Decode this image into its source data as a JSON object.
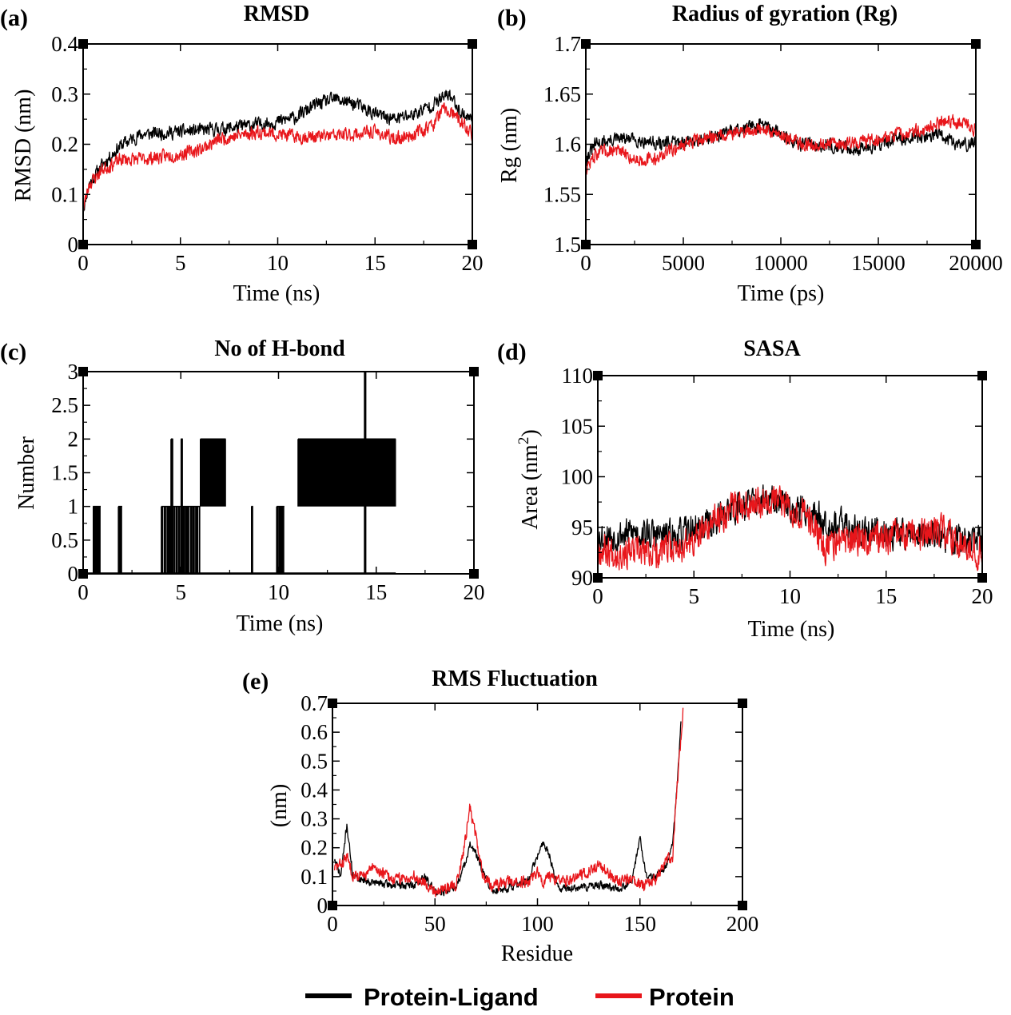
{
  "colors": {
    "protein_ligand": "#000000",
    "protein": "#e8161b"
  },
  "legend": {
    "items": [
      {
        "label": "Protein-Ligand",
        "color": "#000000"
      },
      {
        "label": "Protein",
        "color": "#e8161b"
      }
    ]
  },
  "chart_data": [
    {
      "id": "a",
      "panel_label": "(a)",
      "type": "line",
      "title": "RMSD",
      "xlabel": "Time (ns)",
      "ylabel": "RMSD (nm)",
      "xlim": [
        0,
        20
      ],
      "ylim": [
        0,
        0.4
      ],
      "xticks": [
        0,
        5,
        10,
        15,
        20
      ],
      "xtick_labels": [
        "0",
        "5",
        "10",
        "15",
        "20"
      ],
      "yticks": [
        0,
        0.1,
        0.2,
        0.3,
        0.4
      ],
      "ytick_labels": [
        "0",
        "0.1",
        "0.2",
        "0.3",
        "0.4"
      ],
      "series": [
        {
          "name": "Protein-Ligand",
          "color": "#000000",
          "noise": 0.012,
          "seed": 11,
          "x": [
            0,
            0.3,
            1,
            2,
            3,
            5,
            7,
            9,
            10,
            11,
            12,
            13,
            14,
            15,
            16,
            17,
            18,
            18.8,
            19.5,
            20
          ],
          "y": [
            0.07,
            0.12,
            0.16,
            0.2,
            0.22,
            0.225,
            0.23,
            0.24,
            0.245,
            0.255,
            0.28,
            0.29,
            0.28,
            0.26,
            0.25,
            0.26,
            0.28,
            0.3,
            0.26,
            0.25
          ]
        },
        {
          "name": "Protein",
          "color": "#e8161b",
          "noise": 0.012,
          "seed": 23,
          "x": [
            0,
            0.3,
            1,
            2,
            3,
            5,
            6,
            7,
            9,
            10,
            11,
            12,
            14,
            15,
            16,
            17,
            18,
            18.5,
            19,
            20
          ],
          "y": [
            0.07,
            0.12,
            0.15,
            0.17,
            0.17,
            0.18,
            0.19,
            0.21,
            0.225,
            0.22,
            0.215,
            0.215,
            0.22,
            0.225,
            0.21,
            0.22,
            0.24,
            0.27,
            0.26,
            0.22
          ]
        }
      ]
    },
    {
      "id": "b",
      "panel_label": "(b)",
      "type": "line",
      "title": "Radius of gyration (Rg)",
      "xlabel": "Time (ps)",
      "ylabel": "Rg (nm)",
      "xlim": [
        0,
        20000
      ],
      "ylim": [
        1.5,
        1.7
      ],
      "xticks": [
        0,
        5000,
        10000,
        15000,
        20000
      ],
      "xtick_labels": [
        "0",
        "5000",
        "10000",
        "15000",
        "20000"
      ],
      "yticks": [
        1.5,
        1.55,
        1.6,
        1.65,
        1.7
      ],
      "ytick_labels": [
        "1.5",
        "1.55",
        "1.6",
        "1.65",
        "1.7"
      ],
      "series": [
        {
          "name": "Protein-Ligand",
          "color": "#000000",
          "noise": 0.006,
          "seed": 31,
          "x": [
            0,
            500,
            1500,
            2500,
            4000,
            6000,
            8000,
            9000,
            10000,
            11000,
            12000,
            14000,
            15000,
            16000,
            18000,
            19000,
            20000
          ],
          "y": [
            1.585,
            1.6,
            1.605,
            1.605,
            1.6,
            1.605,
            1.615,
            1.62,
            1.61,
            1.6,
            1.6,
            1.595,
            1.6,
            1.605,
            1.61,
            1.6,
            1.6
          ]
        },
        {
          "name": "Protein",
          "color": "#e8161b",
          "noise": 0.006,
          "seed": 47,
          "x": [
            0,
            500,
            1500,
            2500,
            3500,
            5000,
            7000,
            9000,
            10000,
            11000,
            13000,
            15000,
            16000,
            17500,
            18500,
            19500,
            20000
          ],
          "y": [
            1.575,
            1.59,
            1.595,
            1.585,
            1.585,
            1.6,
            1.61,
            1.615,
            1.61,
            1.6,
            1.6,
            1.605,
            1.61,
            1.615,
            1.625,
            1.62,
            1.615
          ]
        }
      ]
    },
    {
      "id": "c",
      "panel_label": "(c)",
      "type": "step",
      "title": "No of H-bond",
      "xlabel": "Time (ns)",
      "ylabel": "Number",
      "xlim": [
        0,
        20
      ],
      "ylim": [
        0,
        3
      ],
      "xticks": [
        0,
        5,
        10,
        15,
        20
      ],
      "xtick_labels": [
        "0",
        "5",
        "10",
        "15",
        "20"
      ],
      "yticks": [
        0,
        0.5,
        1,
        1.5,
        2,
        2.5,
        3
      ],
      "ytick_labels": [
        "0",
        "0.5",
        "1",
        "1.5",
        "2",
        "2.5",
        "3"
      ],
      "series": [
        {
          "name": "Protein-Ligand",
          "color": "#000000",
          "bursts": [
            {
              "start": 0.5,
              "end": 0.9,
              "levels": [
                0,
                1
              ],
              "density": 8
            },
            {
              "start": 1.8,
              "end": 2.0,
              "levels": [
                0,
                1
              ],
              "density": 4
            },
            {
              "start": 4.0,
              "end": 6.0,
              "levels": [
                0,
                1
              ],
              "density": 30
            },
            {
              "start": 4.5,
              "end": 4.6,
              "levels": [
                0,
                2
              ],
              "density": 3
            },
            {
              "start": 5.0,
              "end": 5.1,
              "levels": [
                0,
                2
              ],
              "density": 2
            },
            {
              "start": 6.0,
              "end": 7.3,
              "levels": [
                1,
                2
              ],
              "density": 45
            },
            {
              "start": 8.6,
              "end": 8.7,
              "levels": [
                0,
                1
              ],
              "density": 2
            },
            {
              "start": 9.9,
              "end": 10.3,
              "levels": [
                0,
                1
              ],
              "density": 8
            },
            {
              "start": 11.0,
              "end": 16.0,
              "levels": [
                1,
                2
              ],
              "density": 150
            },
            {
              "start": 14.4,
              "end": 14.5,
              "levels": [
                0,
                3
              ],
              "density": 2
            }
          ]
        }
      ]
    },
    {
      "id": "d",
      "panel_label": "(d)",
      "type": "line",
      "title": "SASA",
      "xlabel": "Time (ns)",
      "ylabel": "Area (nm",
      "ylabel_sup": "2",
      "ylabel_tail": ")",
      "xlim": [
        0,
        20
      ],
      "ylim": [
        90,
        110
      ],
      "xticks": [
        0,
        5,
        10,
        15,
        20
      ],
      "xtick_labels": [
        "0",
        "5",
        "10",
        "15",
        "20"
      ],
      "yticks": [
        90,
        95,
        100,
        105,
        110
      ],
      "ytick_labels": [
        "90",
        "95",
        "100",
        "105",
        "110"
      ],
      "series": [
        {
          "name": "Protein-Ligand",
          "color": "#000000",
          "noise": 1.4,
          "seed": 53,
          "x": [
            0,
            2,
            4,
            6,
            7,
            8,
            9,
            10,
            11,
            12,
            14,
            16,
            18,
            20
          ],
          "y": [
            94,
            94.5,
            94,
            95.5,
            97,
            97.5,
            97.5,
            97,
            96.5,
            95.5,
            94.5,
            94.5,
            94,
            93.5
          ]
        },
        {
          "name": "Protein",
          "color": "#e8161b",
          "noise": 1.4,
          "seed": 67,
          "x": [
            0,
            1,
            3,
            5,
            6,
            7,
            8,
            9,
            10,
            11,
            11.8,
            12.5,
            14,
            16,
            18,
            20
          ],
          "y": [
            93,
            92.5,
            92.5,
            93.5,
            95.5,
            97,
            97.5,
            98,
            97,
            96,
            93,
            93.5,
            94,
            94,
            94.5,
            92.5
          ]
        }
      ]
    },
    {
      "id": "e",
      "panel_label": "(e)",
      "type": "line",
      "title": "RMS Fluctuation",
      "xlabel": "Residue",
      "ylabel": "(nm)",
      "xlim": [
        0,
        200
      ],
      "ylim": [
        0,
        0.7
      ],
      "xticks": [
        0,
        50,
        100,
        150,
        200
      ],
      "xtick_labels": [
        "0",
        "50",
        "100",
        "150",
        "200"
      ],
      "yticks": [
        0,
        0.1,
        0.2,
        0.3,
        0.4,
        0.5,
        0.6,
        0.7
      ],
      "ytick_labels": [
        "0",
        "0.1",
        "0.2",
        "0.3",
        "0.4",
        "0.5",
        "0.6",
        "0.7"
      ],
      "series": [
        {
          "name": "Protein-Ligand",
          "color": "#000000",
          "noise": 0.012,
          "seed": 71,
          "x": [
            1,
            4,
            7,
            10,
            15,
            20,
            30,
            40,
            45,
            50,
            55,
            60,
            64,
            67,
            70,
            73,
            78,
            85,
            95,
            100,
            103,
            106,
            110,
            120,
            130,
            140,
            146,
            150,
            153,
            158,
            163,
            166,
            168,
            170
          ],
          "y": [
            0.16,
            0.1,
            0.28,
            0.1,
            0.09,
            0.08,
            0.07,
            0.07,
            0.1,
            0.05,
            0.05,
            0.06,
            0.13,
            0.21,
            0.18,
            0.12,
            0.05,
            0.06,
            0.08,
            0.17,
            0.22,
            0.17,
            0.06,
            0.06,
            0.07,
            0.06,
            0.08,
            0.24,
            0.1,
            0.1,
            0.14,
            0.22,
            0.4,
            0.64
          ]
        },
        {
          "name": "Protein",
          "color": "#e8161b",
          "noise": 0.018,
          "seed": 83,
          "x": [
            1,
            4,
            7,
            10,
            15,
            20,
            30,
            40,
            45,
            50,
            55,
            60,
            64,
            67,
            70,
            73,
            78,
            85,
            95,
            100,
            103,
            106,
            110,
            120,
            130,
            140,
            146,
            150,
            153,
            158,
            163,
            166,
            168,
            171
          ],
          "y": [
            0.13,
            0.14,
            0.17,
            0.11,
            0.1,
            0.13,
            0.09,
            0.1,
            0.08,
            0.05,
            0.06,
            0.07,
            0.19,
            0.34,
            0.24,
            0.11,
            0.07,
            0.08,
            0.08,
            0.12,
            0.08,
            0.1,
            0.08,
            0.1,
            0.14,
            0.08,
            0.09,
            0.07,
            0.07,
            0.09,
            0.16,
            0.17,
            0.4,
            0.67
          ]
        }
      ]
    }
  ]
}
